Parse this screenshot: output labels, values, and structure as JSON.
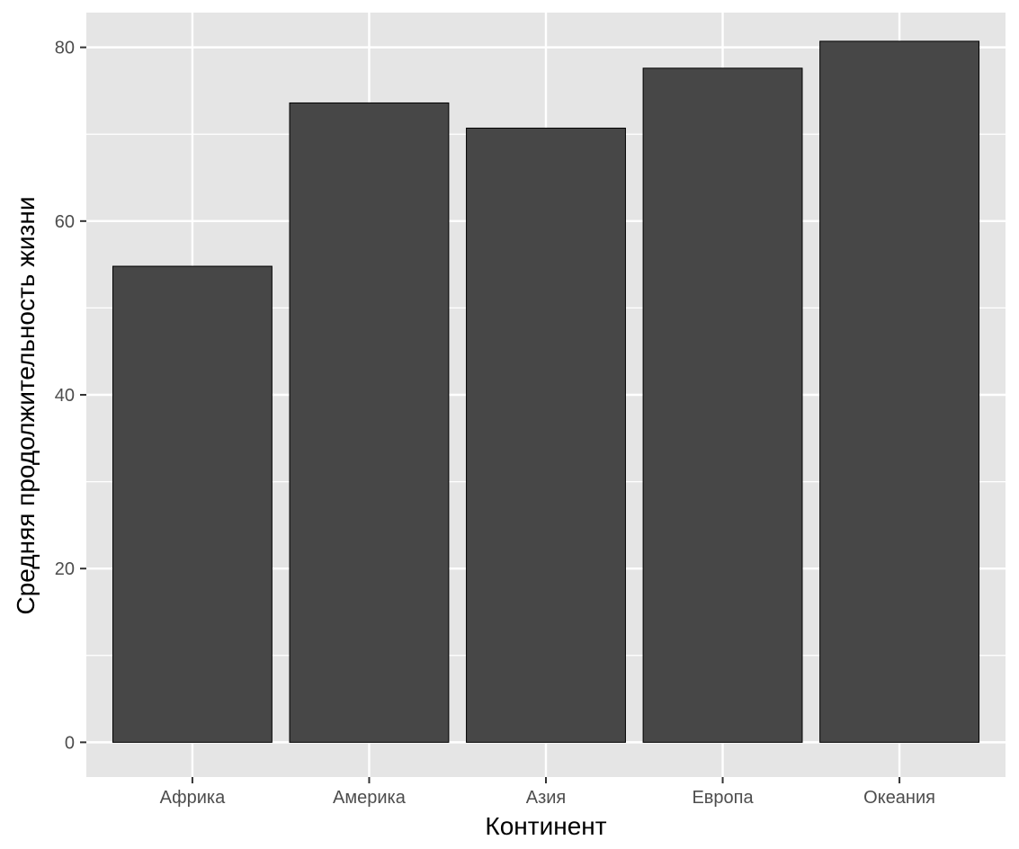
{
  "chart_data": {
    "type": "bar",
    "categories": [
      "Африка",
      "Америка",
      "Азия",
      "Европа",
      "Океания"
    ],
    "values": [
      54.8,
      73.6,
      70.7,
      77.6,
      80.7
    ],
    "xlabel": "Континент",
    "ylabel": "Средняя продолжительность жизни",
    "ylim": [
      -4,
      84
    ],
    "yticks": [
      0,
      20,
      40,
      60,
      80
    ],
    "ytick_labels": [
      "0",
      "20",
      "40",
      "60",
      "80"
    ],
    "grid": true,
    "colors": {
      "panel": "#e5e5e5",
      "bar": "#474747",
      "bar_outline": "#000000",
      "grid": "#ffffff"
    }
  }
}
